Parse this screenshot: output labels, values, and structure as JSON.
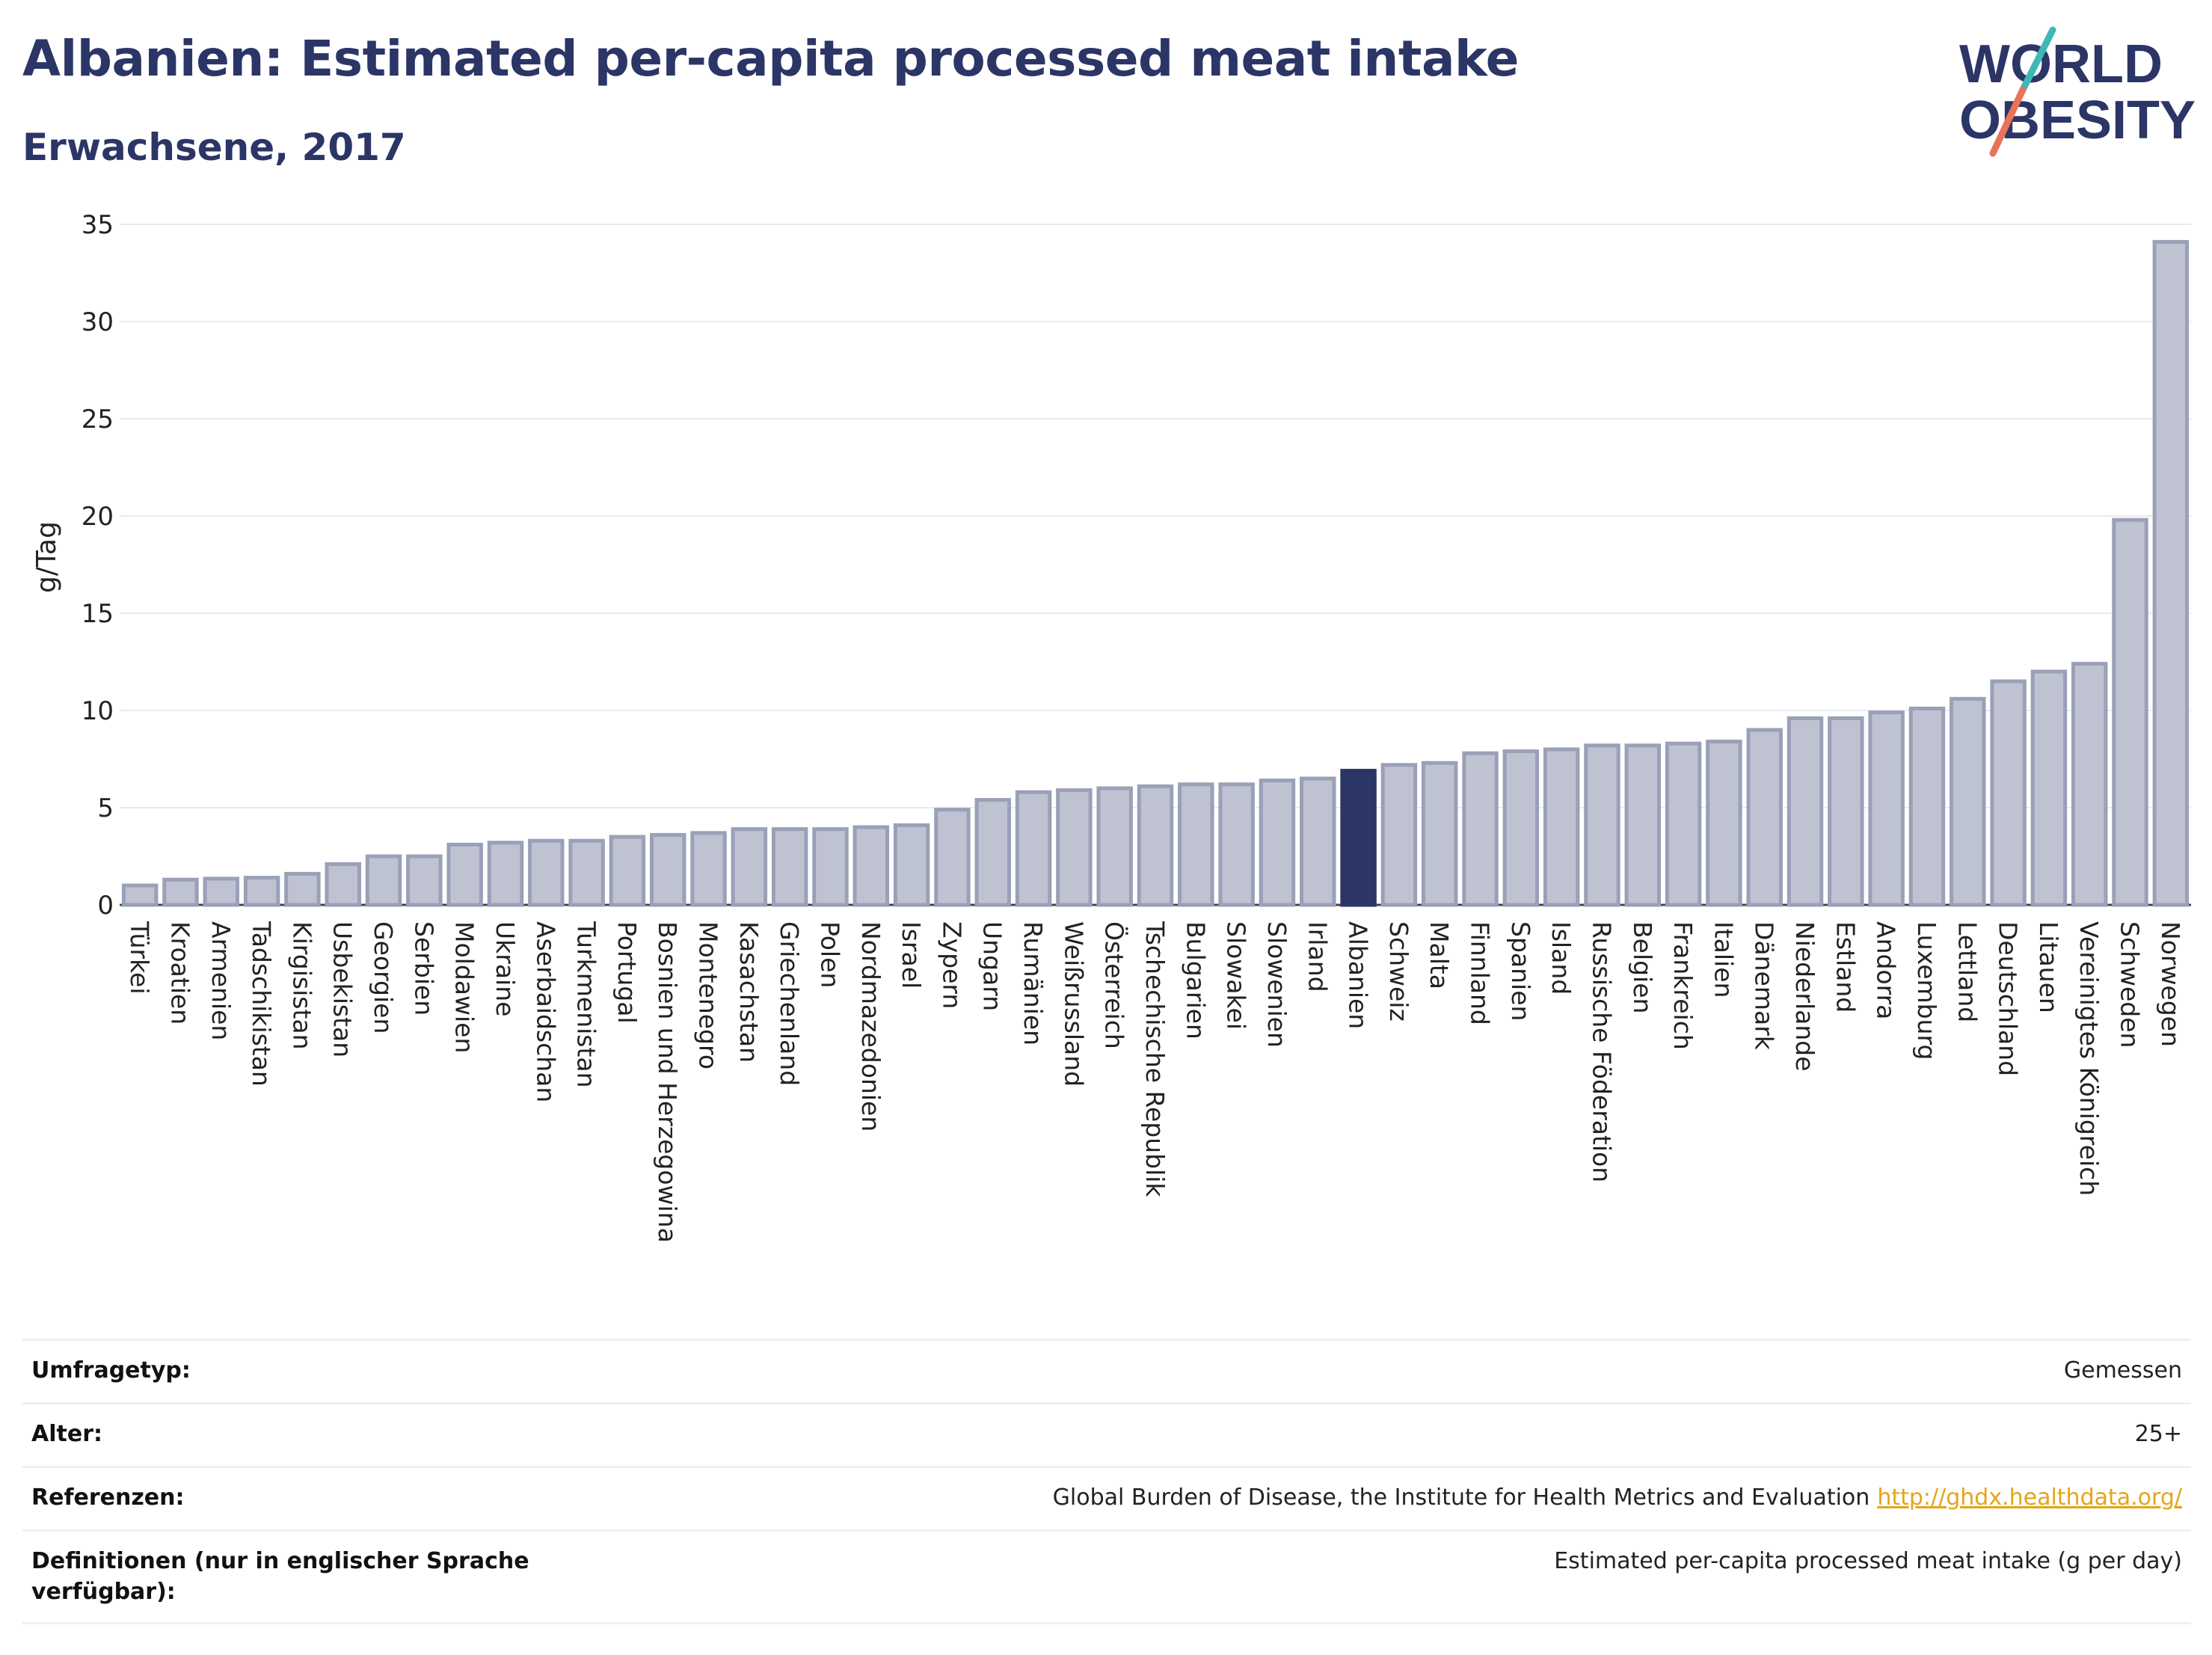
{
  "header": {
    "title": "Albanien: Estimated per-capita processed meat intake",
    "subtitle": "Erwachsene, 2017"
  },
  "logo": {
    "line1": "WORLD",
    "line2": "OBESITY"
  },
  "colors": {
    "title": "#2b3566",
    "bar_fill": "#bfc3d1",
    "bar_stroke": "#9aa0b8",
    "highlight": "#2b3566",
    "logo_teal": "#3db8b6",
    "logo_coral": "#e8735a",
    "link": "#e3a51a"
  },
  "chart_data": {
    "type": "bar",
    "title": "Albanien: Estimated per-capita processed meat intake",
    "subtitle": "Erwachsene, 2017",
    "ylabel": "g/Tag",
    "xlabel": "",
    "ylim": [
      0,
      35
    ],
    "yticks": [
      0,
      5,
      10,
      15,
      20,
      25,
      30,
      35
    ],
    "grid": true,
    "highlight": "Albanien",
    "categories": [
      "Türkei",
      "Kroatien",
      "Armenien",
      "Tadschikistan",
      "Kirgisistan",
      "Usbekistan",
      "Georgien",
      "Serbien",
      "Moldawien",
      "Ukraine",
      "Aserbaidschan",
      "Turkmenistan",
      "Portugal",
      "Bosnien und Herzegowina",
      "Montenegro",
      "Kasachstan",
      "Griechenland",
      "Polen",
      "Nordmazedonien",
      "Israel",
      "Zypern",
      "Ungarn",
      "Rumänien",
      "Weißrussland",
      "Österreich",
      "Tschechische Republik",
      "Bulgarien",
      "Slowakei",
      "Slowenien",
      "Irland",
      "Albanien",
      "Schweiz",
      "Malta",
      "Finnland",
      "Spanien",
      "Island",
      "Russische Föderation",
      "Belgien",
      "Frankreich",
      "Italien",
      "Dänemark",
      "Niederlande",
      "Estland",
      "Andorra",
      "Luxemburg",
      "Lettland",
      "Deutschland",
      "Litauen",
      "Vereinigtes Königreich",
      "Schweden",
      "Norwegen"
    ],
    "values": [
      1.0,
      1.3,
      1.35,
      1.4,
      1.6,
      2.1,
      2.5,
      2.5,
      3.1,
      3.2,
      3.3,
      3.3,
      3.5,
      3.6,
      3.7,
      3.9,
      3.9,
      3.9,
      4.0,
      4.1,
      4.9,
      5.4,
      5.8,
      5.9,
      6.0,
      6.1,
      6.2,
      6.2,
      6.4,
      6.5,
      6.9,
      7.2,
      7.3,
      7.8,
      7.9,
      8.0,
      8.2,
      8.2,
      8.3,
      8.4,
      9.0,
      9.6,
      9.6,
      9.9,
      10.1,
      10.6,
      11.5,
      12.0,
      12.4,
      19.8,
      34.1
    ]
  },
  "meta": [
    {
      "label": "Umfragetyp:",
      "value": "Gemessen",
      "link": ""
    },
    {
      "label": "Alter:",
      "value": "25+",
      "link": ""
    },
    {
      "label": "Referenzen:",
      "value": "Global Burden of Disease, the Institute for Health Metrics and Evaluation",
      "link": "http://ghdx.healthdata.org/"
    },
    {
      "label": "Definitionen (nur in englischer Sprache verfügbar):",
      "value": "Estimated per-capita processed meat intake (g per day)",
      "link": ""
    }
  ]
}
